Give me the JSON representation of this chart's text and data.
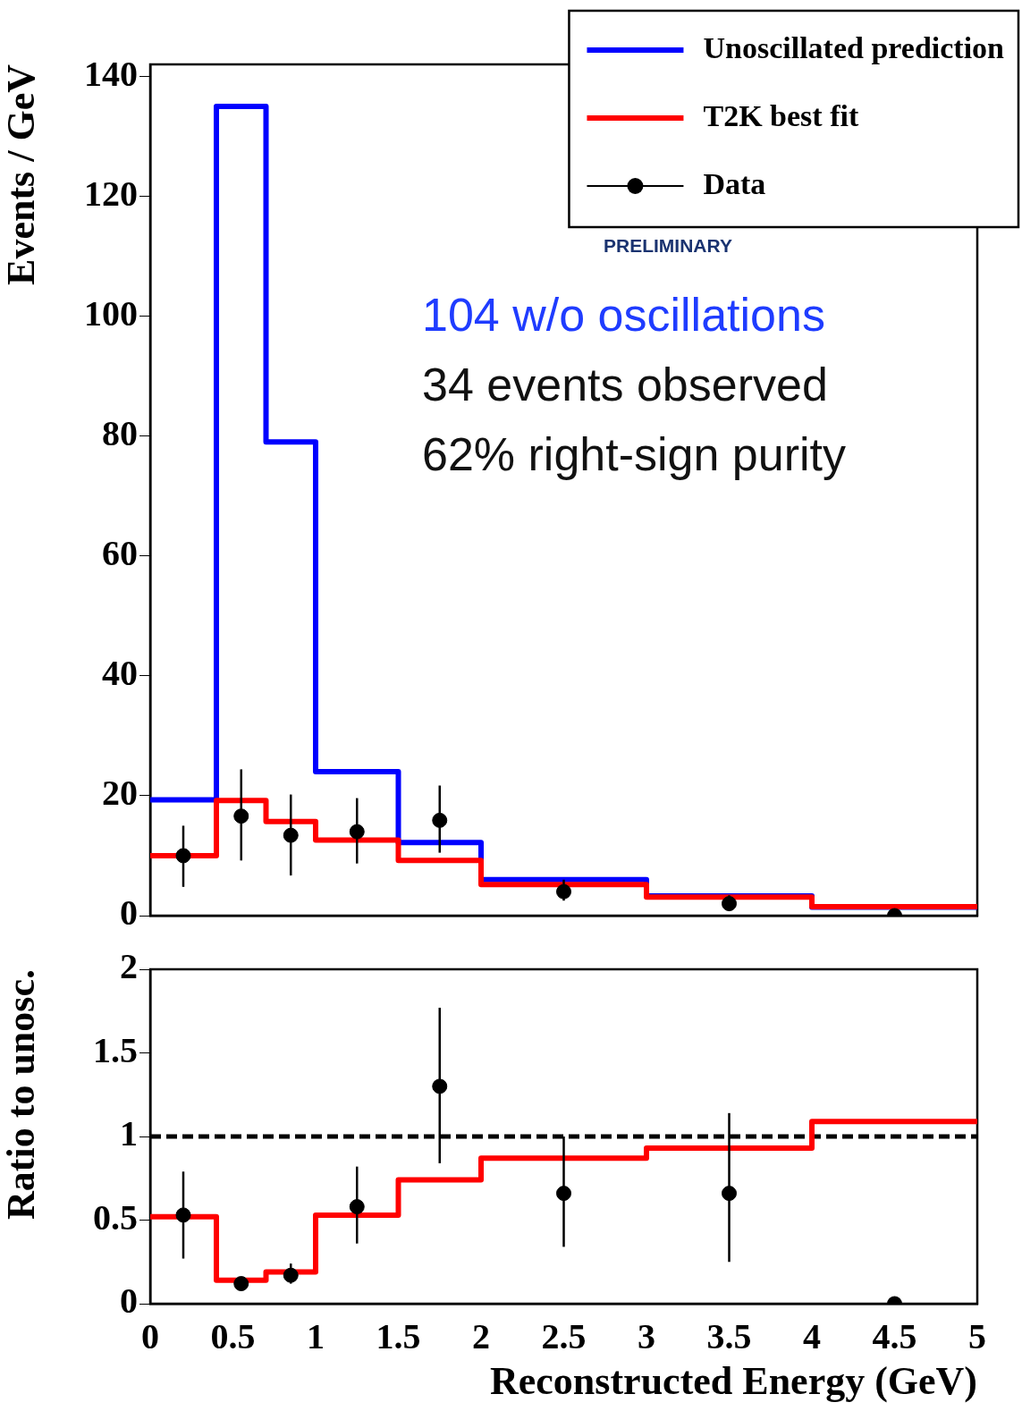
{
  "chart_data": [
    {
      "type": "step",
      "ylabel": "Events / GeV",
      "xlim": [
        0,
        5
      ],
      "xticks": [
        0,
        0.5,
        1,
        1.5,
        2,
        2.5,
        3,
        3.5,
        4,
        4.5,
        5
      ],
      "ylim": [
        0,
        142
      ],
      "yticks": [
        0,
        20,
        40,
        60,
        80,
        100,
        120,
        140
      ],
      "tick_labels": "y",
      "legend": "top right",
      "annotations": [
        "PRELIMINARY",
        "104 w/o oscillations",
        "34 events observed",
        "62% right-sign purity"
      ],
      "series": [
        {
          "name": "Unoscillated prediction",
          "color": "#0000ff",
          "x": [
            0,
            0.4,
            0.7,
            1,
            1.5,
            2,
            3,
            4,
            5
          ],
          "values": [
            19.3,
            135,
            79,
            24,
            12.2,
            6,
            3.3,
            1.4,
            1.4
          ]
        },
        {
          "name": "T2K best fit",
          "color": "#ff0000",
          "x": [
            0,
            0.4,
            0.7,
            1,
            1.5,
            2,
            3,
            4,
            5
          ],
          "values": [
            10,
            19.2,
            15.7,
            12.6,
            9.2,
            5.2,
            3.1,
            1.5,
            1.5
          ]
        },
        {
          "name": "Data",
          "type": "scatter",
          "marker": "circle",
          "color": "#000000",
          "x": [
            0.2,
            0.55,
            0.85,
            1.25,
            1.75,
            2.5,
            3.5,
            4.5
          ],
          "values": [
            10,
            16.6,
            13.4,
            14,
            15.9,
            4,
            2,
            0
          ],
          "errors": [
            [
              4.8,
              15
            ],
            [
              9.2,
              24.4
            ],
            [
              6.7,
              20.2
            ],
            [
              8.7,
              19.6
            ],
            [
              10.5,
              21.7
            ],
            [
              2.5,
              6
            ],
            [
              0.8,
              3.4
            ],
            null
          ]
        }
      ]
    },
    {
      "type": "step",
      "xlabel": "Reconstructed Energy (GeV)",
      "ylabel": "Ratio to unosc.",
      "xlim": [
        0,
        5
      ],
      "xticks": [
        0,
        0.5,
        1,
        1.5,
        2,
        2.5,
        3,
        3.5,
        4,
        4.5,
        5
      ],
      "ylim": [
        0,
        2
      ],
      "yticks": [
        0,
        0.5,
        1,
        1.5,
        2
      ],
      "ref_lines": [
        {
          "axis": "y",
          "value": 1,
          "color": "#000000",
          "line_style": "dashed"
        }
      ],
      "series": [
        {
          "color": "#ff0000",
          "x": [
            0,
            0.4,
            0.7,
            1,
            1.5,
            2,
            3,
            4,
            5
          ],
          "values": [
            0.52,
            0.14,
            0.19,
            0.53,
            0.74,
            0.87,
            0.93,
            1.09,
            1.09
          ]
        },
        {
          "type": "scatter",
          "marker": "circle",
          "color": "#000000",
          "x": [
            0.2,
            0.55,
            0.85,
            1.25,
            1.75,
            2.5,
            3.5,
            4.5
          ],
          "values": [
            0.53,
            0.12,
            0.17,
            0.58,
            1.3,
            0.66,
            0.66,
            0
          ],
          "errors": [
            [
              0.27,
              0.79
            ],
            [
              0.08,
              0.16
            ],
            [
              0.12,
              0.24
            ],
            [
              0.36,
              0.82
            ],
            [
              0.84,
              1.77
            ],
            [
              0.34,
              1.0
            ],
            [
              0.25,
              1.14
            ],
            null
          ]
        }
      ]
    }
  ]
}
